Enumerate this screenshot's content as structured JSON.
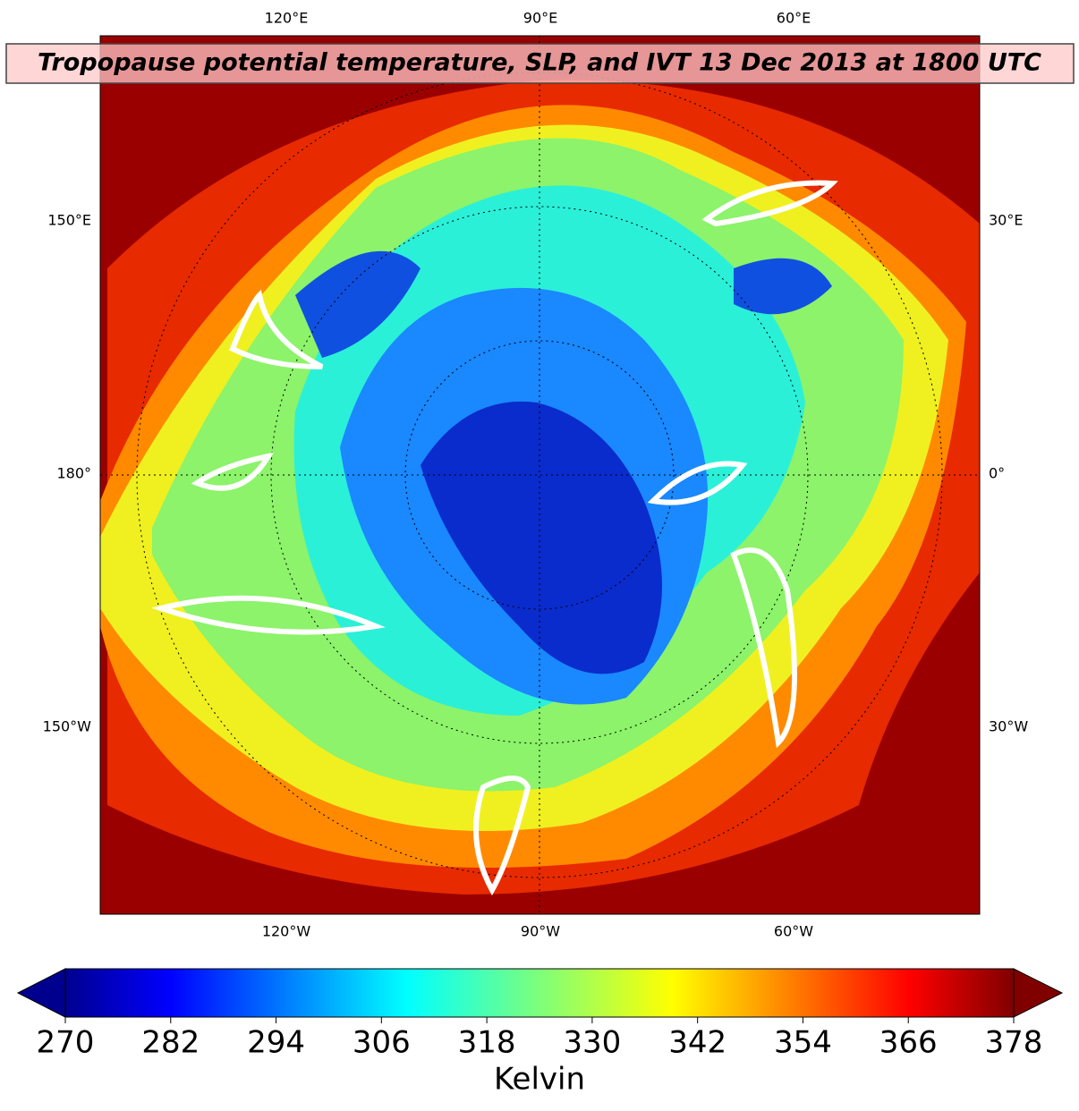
{
  "map": {
    "title": "Tropopause potential temperature, SLP, and IVT 13 Dec 2013 at 1800 UTC",
    "top_labels": [
      "120°E",
      "90°E",
      "60°E"
    ],
    "bottom_labels": [
      "120°W",
      "90°W",
      "60°W"
    ],
    "left_labels": [
      "150°E",
      "180°",
      "150°W"
    ],
    "right_labels": [
      "30°E",
      "0°",
      "30°W"
    ]
  },
  "colorbar": {
    "label": "Kelvin",
    "colormap": "jet",
    "lim": [
      270,
      378
    ],
    "ticks": [
      270,
      282,
      294,
      306,
      318,
      330,
      342,
      354,
      366,
      378
    ]
  }
}
